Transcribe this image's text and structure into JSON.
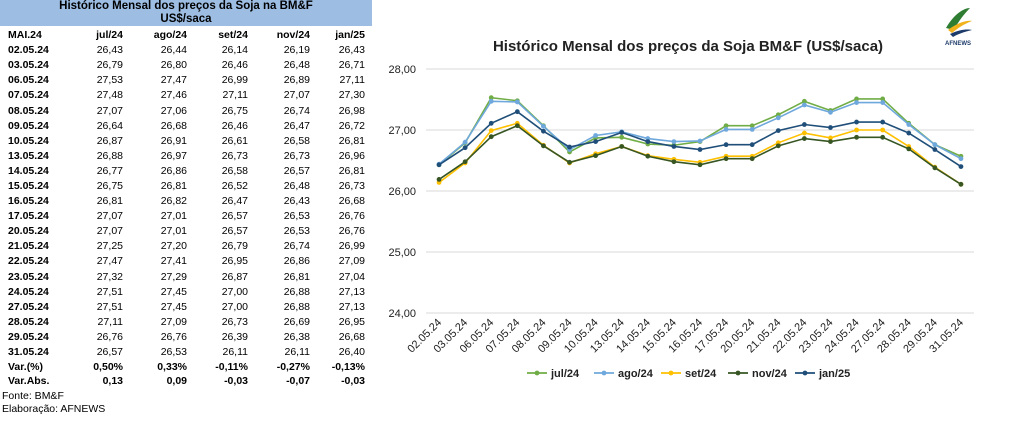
{
  "table": {
    "title": "Histórico Mensal dos preços da Soja na BM&F",
    "subtitle": "US$/saca",
    "columns": [
      "MAI.24",
      "jul/24",
      "ago/24",
      "set/24",
      "nov/24",
      "jan/25"
    ],
    "rows": [
      [
        "02.05.24",
        "26,43",
        "26,44",
        "26,14",
        "26,19",
        "26,43"
      ],
      [
        "03.05.24",
        "26,79",
        "26,80",
        "26,46",
        "26,48",
        "26,71"
      ],
      [
        "06.05.24",
        "27,53",
        "27,47",
        "26,99",
        "26,89",
        "27,11"
      ],
      [
        "07.05.24",
        "27,48",
        "27,46",
        "27,11",
        "27,07",
        "27,30"
      ],
      [
        "08.05.24",
        "27,07",
        "27,06",
        "26,75",
        "26,74",
        "26,98"
      ],
      [
        "09.05.24",
        "26,64",
        "26,68",
        "26,46",
        "26,47",
        "26,72"
      ],
      [
        "10.05.24",
        "26,87",
        "26,91",
        "26,61",
        "26,58",
        "26,81"
      ],
      [
        "13.05.24",
        "26,88",
        "26,97",
        "26,73",
        "26,73",
        "26,96"
      ],
      [
        "14.05.24",
        "26,77",
        "26,86",
        "26,58",
        "26,57",
        "26,81"
      ],
      [
        "15.05.24",
        "26,75",
        "26,81",
        "26,52",
        "26,48",
        "26,73"
      ],
      [
        "16.05.24",
        "26,81",
        "26,82",
        "26,47",
        "26,43",
        "26,68"
      ],
      [
        "17.05.24",
        "27,07",
        "27,01",
        "26,57",
        "26,53",
        "26,76"
      ],
      [
        "20.05.24",
        "27,07",
        "27,01",
        "26,57",
        "26,53",
        "26,76"
      ],
      [
        "21.05.24",
        "27,25",
        "27,20",
        "26,79",
        "26,74",
        "26,99"
      ],
      [
        "22.05.24",
        "27,47",
        "27,41",
        "26,95",
        "26,86",
        "27,09"
      ],
      [
        "23.05.24",
        "27,32",
        "27,29",
        "26,87",
        "26,81",
        "27,04"
      ],
      [
        "24.05.24",
        "27,51",
        "27,45",
        "27,00",
        "26,88",
        "27,13"
      ],
      [
        "27.05.24",
        "27,51",
        "27,45",
        "27,00",
        "26,88",
        "27,13"
      ],
      [
        "28.05.24",
        "27,11",
        "27,09",
        "26,73",
        "26,69",
        "26,95"
      ],
      [
        "29.05.24",
        "26,76",
        "26,76",
        "26,39",
        "26,38",
        "26,68"
      ],
      [
        "31.05.24",
        "26,57",
        "26,53",
        "26,11",
        "26,11",
        "26,40"
      ]
    ],
    "var_pct": [
      "Var.(%)",
      "0,50%",
      "0,33%",
      "-0,11%",
      "-0,27%",
      "-0,13%"
    ],
    "var_abs": [
      "Var.Abs.",
      "0,13",
      "0,09",
      "-0,03",
      "-0,07",
      "-0,03"
    ],
    "source": "Fonte: BM&F",
    "credit": "Elaboração: AFNEWS"
  },
  "logo": {
    "text": "AFNEWS"
  },
  "chart_data": {
    "type": "line",
    "title": "Histórico Mensal dos preços da Soja BM&F (US$/saca)",
    "xlabel": "",
    "ylabel": "",
    "ylim": [
      24.0,
      28.0
    ],
    "yticks": [
      24.0,
      25.0,
      26.0,
      27.0,
      28.0
    ],
    "ytick_labels": [
      "24,00",
      "25,00",
      "26,00",
      "27,00",
      "28,00"
    ],
    "grid": true,
    "legend_position": "bottom",
    "x": [
      "02.05.24",
      "03.05.24",
      "06.05.24",
      "07.05.24",
      "08.05.24",
      "09.05.24",
      "10.05.24",
      "13.05.24",
      "14.05.24",
      "15.05.24",
      "16.05.24",
      "17.05.24",
      "20.05.24",
      "21.05.24",
      "22.05.24",
      "23.05.24",
      "24.05.24",
      "27.05.24",
      "28.05.24",
      "29.05.24",
      "31.05.24"
    ],
    "series": [
      {
        "name": "jul/24",
        "color": "#70ad47",
        "values": [
          26.43,
          26.79,
          27.53,
          27.48,
          27.07,
          26.64,
          26.87,
          26.88,
          26.77,
          26.75,
          26.81,
          27.07,
          27.07,
          27.25,
          27.47,
          27.32,
          27.51,
          27.51,
          27.11,
          26.76,
          26.57
        ]
      },
      {
        "name": "ago/24",
        "color": "#6fa8dc",
        "values": [
          26.44,
          26.8,
          27.47,
          27.46,
          27.06,
          26.68,
          26.91,
          26.97,
          26.86,
          26.81,
          26.82,
          27.01,
          27.01,
          27.2,
          27.41,
          27.29,
          27.45,
          27.45,
          27.09,
          26.76,
          26.53
        ]
      },
      {
        "name": "set/24",
        "color": "#ffc000",
        "values": [
          26.14,
          26.46,
          26.99,
          27.11,
          26.75,
          26.46,
          26.61,
          26.73,
          26.58,
          26.52,
          26.47,
          26.57,
          26.57,
          26.79,
          26.95,
          26.87,
          27.0,
          27.0,
          26.73,
          26.39,
          26.11
        ]
      },
      {
        "name": "nov/24",
        "color": "#375623",
        "values": [
          26.19,
          26.48,
          26.89,
          27.07,
          26.74,
          26.47,
          26.58,
          26.73,
          26.57,
          26.48,
          26.43,
          26.53,
          26.53,
          26.74,
          26.86,
          26.81,
          26.88,
          26.88,
          26.69,
          26.38,
          26.11
        ]
      },
      {
        "name": "jan/25",
        "color": "#1f4e79",
        "values": [
          26.43,
          26.71,
          27.11,
          27.3,
          26.98,
          26.72,
          26.81,
          26.96,
          26.81,
          26.73,
          26.68,
          26.76,
          26.76,
          26.99,
          27.09,
          27.04,
          27.13,
          27.13,
          26.95,
          26.68,
          26.4
        ]
      }
    ]
  }
}
